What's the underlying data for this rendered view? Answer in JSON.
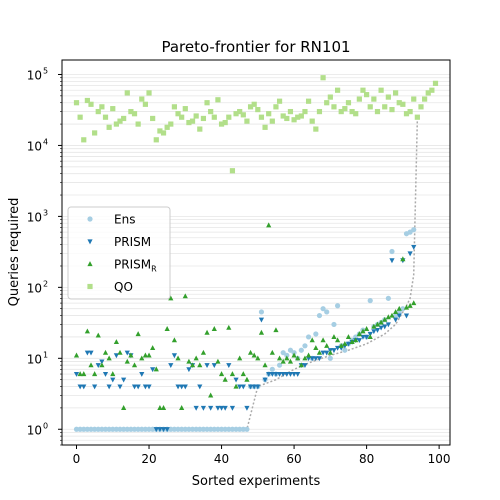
{
  "chart_data": {
    "type": "scatter",
    "title": "Pareto-frontier for RN101",
    "xlabel": "Sorted experiments",
    "ylabel": "Queries required",
    "xlim": [
      -4,
      103
    ],
    "ylim": [
      0.6,
      160000
    ],
    "yscale": "log",
    "x_ticks": [
      "0",
      "20",
      "40",
      "60",
      "80",
      "100"
    ],
    "y_ticks": [
      "10^0",
      "10^1",
      "10^2",
      "10^3",
      "10^4",
      "10^5"
    ],
    "grid": "horizontal minor lines",
    "legend_position": "center-left",
    "frontier": {
      "style": "dotted",
      "color": "#aaaaaa",
      "x": [
        0,
        47,
        50,
        55,
        60,
        65,
        70,
        75,
        80,
        85,
        88,
        90,
        91,
        92,
        93,
        94
      ],
      "y": [
        1,
        1,
        4,
        5,
        7,
        9,
        11,
        13,
        16,
        22,
        30,
        45,
        55,
        70,
        150,
        25000
      ]
    },
    "series": [
      {
        "name": "Ens",
        "marker": "circle",
        "color": "#a6cee3",
        "x": [
          0,
          1,
          2,
          3,
          4,
          5,
          6,
          7,
          8,
          9,
          10,
          11,
          12,
          13,
          14,
          15,
          16,
          17,
          18,
          19,
          20,
          21,
          22,
          23,
          24,
          25,
          26,
          27,
          28,
          29,
          30,
          31,
          32,
          33,
          34,
          35,
          36,
          37,
          38,
          39,
          40,
          41,
          42,
          43,
          44,
          45,
          46,
          47,
          48,
          49,
          50,
          51,
          52,
          53,
          54,
          55,
          56,
          57,
          58,
          59,
          60,
          61,
          62,
          63,
          64,
          65,
          66,
          67,
          68,
          69,
          70,
          71,
          72,
          73,
          74,
          75,
          76,
          77,
          78,
          79,
          80,
          81,
          82,
          83,
          84,
          85,
          86,
          87,
          88,
          89,
          90,
          91,
          92,
          93
        ],
        "y": [
          1,
          1,
          1,
          1,
          1,
          1,
          1,
          1,
          1,
          1,
          1,
          1,
          1,
          1,
          1,
          1,
          1,
          1,
          1,
          1,
          1,
          1,
          1,
          1,
          1,
          1,
          1,
          1,
          1,
          1,
          1,
          1,
          1,
          1,
          1,
          1,
          1,
          1,
          1,
          1,
          1,
          1,
          1,
          1,
          1,
          1,
          1,
          1,
          4,
          4,
          4,
          45,
          5,
          6,
          7,
          6,
          8,
          12,
          11,
          13,
          12,
          10,
          13,
          15,
          20,
          10,
          22,
          40,
          50,
          45,
          10,
          30,
          55,
          15,
          13,
          16,
          18,
          20,
          22,
          25,
          20,
          65,
          28,
          30,
          32,
          35,
          70,
          320,
          40,
          45,
          50,
          570,
          600,
          650
        ]
      },
      {
        "name": "PRISM",
        "marker": "triangle-down",
        "color": "#1f78b4",
        "x": [
          0,
          1,
          2,
          3,
          4,
          5,
          6,
          7,
          8,
          9,
          10,
          11,
          12,
          13,
          14,
          15,
          16,
          17,
          18,
          19,
          20,
          21,
          22,
          23,
          24,
          25,
          26,
          27,
          28,
          29,
          30,
          31,
          32,
          33,
          34,
          35,
          36,
          37,
          38,
          39,
          40,
          41,
          42,
          43,
          44,
          45,
          46,
          47,
          48,
          49,
          50,
          51,
          52,
          53,
          54,
          55,
          56,
          57,
          58,
          59,
          60,
          61,
          62,
          63,
          64,
          65,
          66,
          67,
          68,
          69,
          70,
          71,
          72,
          73,
          74,
          75,
          76,
          77,
          78,
          79,
          80,
          81,
          82,
          83,
          84,
          85,
          86,
          87,
          88,
          89,
          90,
          91,
          92,
          93
        ],
        "y": [
          6,
          4,
          4,
          12,
          12,
          4,
          8,
          9,
          6,
          4,
          5,
          11,
          4,
          5,
          12,
          11,
          4,
          4,
          6,
          4,
          4,
          7,
          1,
          1,
          1,
          1,
          8,
          11,
          4,
          4,
          4,
          7,
          8,
          2,
          4,
          2,
          8,
          2,
          8,
          2,
          2,
          2,
          8,
          2,
          5,
          4,
          4,
          2,
          4,
          4,
          4,
          35,
          5,
          6,
          6,
          6,
          6,
          6,
          6,
          6,
          6,
          6,
          8,
          8,
          10,
          10,
          10,
          10,
          12,
          12,
          13,
          13,
          14,
          14,
          15,
          16,
          17,
          18,
          18,
          20,
          20,
          22,
          24,
          25,
          27,
          28,
          30,
          240,
          35,
          40,
          240,
          40,
          300,
          370
        ]
      },
      {
        "name": "PRISM_R",
        "marker": "triangle-up",
        "color": "#33a02c",
        "x": [
          0,
          1,
          2,
          3,
          4,
          5,
          6,
          7,
          8,
          9,
          10,
          11,
          12,
          13,
          14,
          15,
          16,
          17,
          18,
          19,
          20,
          21,
          22,
          23,
          24,
          25,
          26,
          27,
          28,
          29,
          30,
          31,
          32,
          33,
          34,
          35,
          36,
          37,
          38,
          39,
          40,
          41,
          42,
          43,
          44,
          45,
          46,
          47,
          48,
          49,
          50,
          51,
          52,
          53,
          54,
          55,
          56,
          57,
          58,
          59,
          60,
          61,
          62,
          63,
          64,
          65,
          66,
          67,
          68,
          69,
          70,
          71,
          72,
          73,
          74,
          75,
          76,
          77,
          78,
          79,
          80,
          81,
          82,
          83,
          84,
          85,
          86,
          87,
          88,
          89,
          90,
          91,
          92,
          93
        ],
        "y": [
          11,
          6,
          6,
          24,
          8,
          6,
          21,
          8,
          12,
          10,
          6,
          17,
          12,
          2,
          9,
          11,
          8,
          22,
          10,
          11,
          11,
          14,
          7,
          2,
          2,
          26,
          70,
          18,
          10,
          2,
          75,
          9,
          8,
          10,
          8,
          12,
          23,
          3,
          26,
          9,
          6,
          5,
          27,
          6,
          4,
          10,
          6,
          5,
          12,
          11,
          10,
          23,
          8,
          750,
          12,
          25,
          10,
          9,
          10,
          9,
          11,
          10,
          8,
          10,
          11,
          18,
          14,
          12,
          18,
          15,
          12,
          20,
          18,
          15,
          16,
          20,
          17,
          18,
          22,
          24,
          26,
          20,
          28,
          30,
          32,
          35,
          38,
          40,
          45,
          50,
          250,
          52,
          55,
          60
        ]
      },
      {
        "name": "QO",
        "marker": "square",
        "color": "#b2df8a",
        "x": [
          0,
          1,
          2,
          3,
          4,
          5,
          6,
          7,
          8,
          9,
          10,
          11,
          12,
          13,
          14,
          15,
          16,
          17,
          18,
          19,
          20,
          21,
          22,
          23,
          24,
          25,
          26,
          27,
          28,
          29,
          30,
          31,
          32,
          33,
          34,
          35,
          36,
          37,
          38,
          39,
          40,
          41,
          42,
          43,
          44,
          45,
          46,
          47,
          48,
          49,
          50,
          51,
          52,
          53,
          54,
          55,
          56,
          57,
          58,
          59,
          60,
          61,
          62,
          63,
          64,
          65,
          66,
          67,
          68,
          69,
          70,
          71,
          72,
          73,
          74,
          75,
          76,
          77,
          78,
          79,
          80,
          81,
          82,
          83,
          84,
          85,
          86,
          87,
          88,
          89,
          90,
          91,
          92,
          93,
          94,
          95,
          96,
          97,
          98,
          99
        ],
        "y": [
          40000,
          25000,
          12000,
          43000,
          38000,
          15000,
          30000,
          35000,
          25000,
          18000,
          33000,
          20000,
          22000,
          24000,
          55000,
          30000,
          28000,
          20000,
          45000,
          38000,
          55000,
          24000,
          12000,
          16000,
          15000,
          18000,
          20000,
          35000,
          28000,
          25000,
          33000,
          21000,
          22000,
          26000,
          17000,
          24000,
          40000,
          30000,
          25000,
          44000,
          20000,
          21000,
          25000,
          4400,
          28000,
          30000,
          27000,
          22000,
          35000,
          38000,
          32000,
          25000,
          18000,
          28000,
          22000,
          35000,
          42000,
          26000,
          24000,
          30000,
          23000,
          25000,
          26000,
          30000,
          42000,
          22000,
          17000,
          30000,
          90000,
          40000,
          48000,
          35000,
          60000,
          30000,
          33000,
          40000,
          30000,
          28000,
          45000,
          60000,
          52000,
          35000,
          45000,
          30000,
          60000,
          35000,
          48000,
          32000,
          55000,
          40000,
          38000,
          28000,
          30000,
          45000,
          25000,
          35000,
          45000,
          55000,
          60000,
          75000
        ]
      }
    ]
  }
}
